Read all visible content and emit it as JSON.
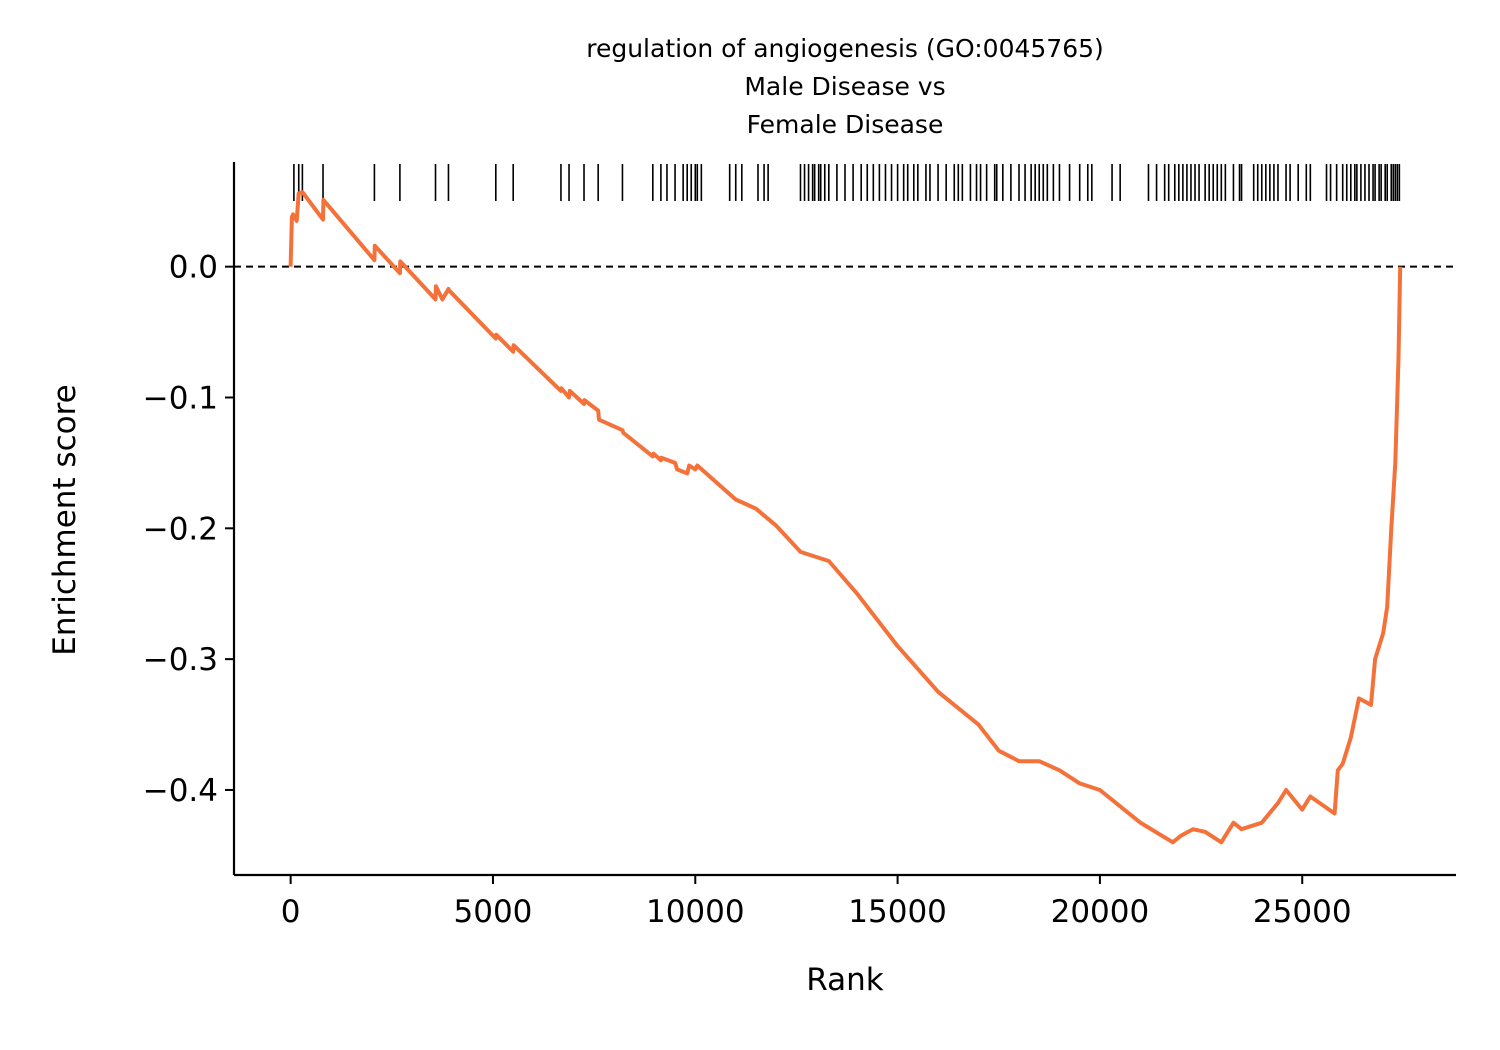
{
  "chart_data": {
    "type": "line",
    "title_lines": [
      "regulation of angiogenesis (GO:0045765)",
      "Male Disease vs",
      "Female Disease"
    ],
    "xlabel": "Rank",
    "ylabel": "Enrichment score",
    "xlim": [
      -1400,
      28800
    ],
    "ylim": [
      -0.465,
      0.08
    ],
    "x_ticks": [
      0,
      5000,
      10000,
      15000,
      20000,
      25000
    ],
    "x_tick_labels": [
      "0",
      "5000",
      "10000",
      "15000",
      "20000",
      "25000"
    ],
    "y_ticks": [
      0.0,
      -0.1,
      -0.2,
      -0.3,
      -0.4
    ],
    "y_tick_labels": [
      "0.0",
      "−0.1",
      "−0.2",
      "−0.3",
      "−0.4"
    ],
    "zero_line": "dashed",
    "grid": false,
    "line_color": "#f4713a",
    "hit_color": "#000000",
    "series": [
      {
        "x": [
          0,
          30,
          60,
          150,
          200,
          290,
          800,
          810,
          2070,
          2080,
          2700,
          2710,
          3580,
          3590,
          3750,
          3900,
          3910,
          5070,
          5080,
          5500,
          5510,
          6680,
          6690,
          6880,
          6900,
          7250,
          7260,
          7600,
          7620,
          8200,
          8220,
          8950,
          8970,
          9150,
          9160,
          9500,
          9550,
          9800,
          9850,
          10000,
          10050,
          11000,
          11500,
          12000,
          12600,
          13000,
          13300,
          14000,
          15000,
          16000,
          17000,
          17500,
          18000,
          18500,
          19000,
          19500,
          20000,
          21000,
          21800,
          22000,
          22300,
          22600,
          23000,
          23300,
          23500,
          24000,
          24400,
          24600,
          25000,
          25200,
          25800,
          25880,
          26000,
          26200,
          26400,
          26700,
          26800,
          27000,
          27100,
          27200,
          27300,
          27380,
          27420
        ],
        "y": [
          0.0,
          0.038,
          0.04,
          0.035,
          0.056,
          0.057,
          0.036,
          0.051,
          0.005,
          0.016,
          -0.005,
          0.004,
          -0.025,
          -0.015,
          -0.025,
          -0.017,
          -0.018,
          -0.055,
          -0.052,
          -0.065,
          -0.06,
          -0.095,
          -0.093,
          -0.1,
          -0.095,
          -0.105,
          -0.102,
          -0.11,
          -0.117,
          -0.125,
          -0.127,
          -0.145,
          -0.143,
          -0.148,
          -0.146,
          -0.15,
          -0.155,
          -0.158,
          -0.152,
          -0.155,
          -0.152,
          -0.178,
          -0.185,
          -0.198,
          -0.218,
          -0.222,
          -0.225,
          -0.25,
          -0.29,
          -0.325,
          -0.35,
          -0.37,
          -0.378,
          -0.378,
          -0.385,
          -0.395,
          -0.4,
          -0.425,
          -0.44,
          -0.435,
          -0.43,
          -0.432,
          -0.44,
          -0.425,
          -0.43,
          -0.425,
          -0.41,
          -0.4,
          -0.415,
          -0.405,
          -0.418,
          -0.385,
          -0.38,
          -0.36,
          -0.33,
          -0.335,
          -0.3,
          -0.28,
          -0.26,
          -0.2,
          -0.15,
          -0.07,
          0.0
        ]
      }
    ],
    "hit_positions": [
      80,
      200,
      290,
      800,
      2070,
      2700,
      3580,
      3900,
      5070,
      5500,
      6680,
      6880,
      7250,
      7600,
      8200,
      8950,
      9150,
      9300,
      9500,
      9700,
      9800,
      9900,
      10000,
      10050,
      10150,
      10850,
      11000,
      11150,
      11550,
      11700,
      11800,
      12600,
      12700,
      12800,
      12900,
      12950,
      13050,
      13100,
      13200,
      13300,
      13500,
      13700,
      13900,
      14100,
      14250,
      14400,
      14550,
      14700,
      14850,
      15000,
      15150,
      15250,
      15400,
      15500,
      15700,
      15800,
      16000,
      16200,
      16400,
      16500,
      16600,
      16800,
      16950,
      17050,
      17200,
      17400,
      17450,
      17600,
      17800,
      18000,
      18150,
      18300,
      18400,
      18500,
      18600,
      18700,
      18850,
      19000,
      19250,
      19500,
      19700,
      19800,
      20300,
      20500,
      21200,
      21400,
      21600,
      21700,
      21850,
      21950,
      22050,
      22150,
      22250,
      22350,
      22450,
      22600,
      22700,
      22800,
      22900,
      23000,
      23100,
      23300,
      23450,
      23500,
      23800,
      23900,
      24000,
      24100,
      24200,
      24300,
      24400,
      24600,
      24700,
      24900,
      25100,
      25200,
      25600,
      25700,
      25850,
      26000,
      26100,
      26200,
      26300,
      26350,
      26450,
      26550,
      26650,
      26750,
      26800,
      26900,
      26950,
      27050,
      27100,
      27200,
      27250,
      27300,
      27350,
      27400
    ]
  }
}
